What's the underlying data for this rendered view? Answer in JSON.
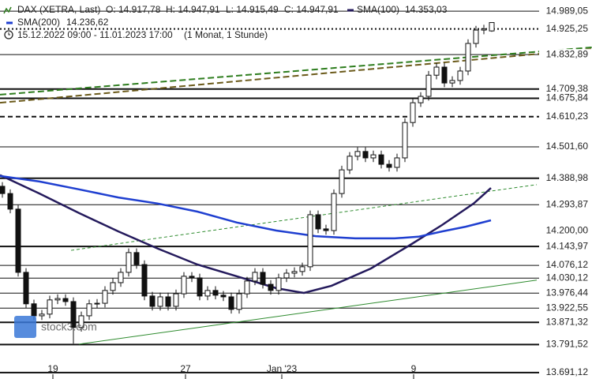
{
  "chart_data": {
    "type": "candlestick",
    "title": "DAX (XETRA, Last)",
    "ohlc_legend": [
      "O: 14.917,78",
      "H: 14.947,91",
      "L: 14.915,49",
      "C: 14.947,91"
    ],
    "period": "15.12.2022 09:00 - 11.01.2023 17:00",
    "interval": "(1 Monat, 1 Stunde)",
    "watermark": "stock3.com",
    "ylim": [
      13668,
      15029
    ],
    "xlim": [
      -0.3,
      74.7
    ],
    "xticks": [
      {
        "value": 6.4,
        "label": "19"
      },
      {
        "value": 23.2,
        "label": "27"
      },
      {
        "value": 35.4,
        "label": "Jan '23"
      },
      {
        "value": 52.1,
        "label": "9"
      }
    ],
    "up_color": "#ffffff",
    "down_color": "#111111",
    "open": [
      14360,
      14334,
      14278,
      14051,
      13938,
      13895,
      13901,
      13952,
      13957,
      13946,
      13853,
      13895,
      13938,
      13940,
      13986,
      14014,
      14051,
      14122,
      14079,
      13966,
      13929,
      13963,
      13929,
      13974,
      14037,
      14031,
      13966,
      13986,
      13969,
      13963,
      13918,
      13974,
      14020,
      14051,
      14008,
      13986,
      14031,
      14048,
      14054,
      14071,
      14258,
      14207,
      14201,
      14334,
      14419,
      14468,
      14485,
      14462,
      14473,
      14439,
      14428,
      14462,
      14589,
      14660,
      14683,
      14759,
      14788,
      14731,
      14740,
      14774,
      14873,
      14921,
      14918
    ],
    "high": [
      14375,
      14349,
      14293,
      14066,
      13953,
      13916,
      13967,
      13972,
      13972,
      13961,
      13910,
      13953,
      13955,
      14001,
      14029,
      14066,
      14137,
      14137,
      14094,
      13981,
      13978,
      13978,
      13989,
      14052,
      14052,
      14046,
      14001,
      14001,
      13984,
      13978,
      13989,
      14035,
      14066,
      14066,
      14023,
      14046,
      14063,
      14069,
      14086,
      14273,
      14273,
      14222,
      14349,
      14434,
      14483,
      14500,
      14500,
      14488,
      14488,
      14454,
      14477,
      14604,
      14675,
      14698,
      14774,
      14803,
      14803,
      14755,
      14789,
      14888,
      14936,
      14940,
      14948
    ],
    "low": [
      14319,
      14263,
      14036,
      13923,
      13880,
      13880,
      13886,
      13937,
      13931,
      13795,
      13838,
      13880,
      13923,
      13925,
      13971,
      13999,
      14036,
      14064,
      13951,
      13914,
      13914,
      13914,
      13914,
      13959,
      14016,
      13951,
      13951,
      13954,
      13948,
      13903,
      13903,
      13959,
      14005,
      13993,
      13971,
      13971,
      14016,
      14033,
      14039,
      14056,
      14192,
      14186,
      14186,
      14319,
      14404,
      14453,
      14447,
      14447,
      14424,
      14413,
      14413,
      14447,
      14574,
      14645,
      14668,
      14744,
      14716,
      14716,
      14725,
      14759,
      14858,
      14906,
      14915
    ],
    "close": [
      14334,
      14278,
      14051,
      13938,
      13895,
      13901,
      13952,
      13957,
      13946,
      13853,
      13895,
      13938,
      13940,
      13986,
      14014,
      14051,
      14122,
      14079,
      13966,
      13929,
      13963,
      13929,
      13974,
      14037,
      14031,
      13966,
      13986,
      13969,
      13963,
      13918,
      13974,
      14020,
      14051,
      14008,
      13986,
      14031,
      14048,
      14054,
      14071,
      14258,
      14207,
      14201,
      14334,
      14419,
      14468,
      14485,
      14462,
      14473,
      14439,
      14428,
      14462,
      14589,
      14660,
      14683,
      14759,
      14788,
      14731,
      14740,
      14774,
      14873,
      14921,
      14925,
      14948
    ],
    "series": [
      {
        "name": "SMA(100)",
        "legend_value": "14.353,03",
        "color": "#241a5c",
        "x": [
          -0.3,
          4.7,
          9.7,
          14.7,
          19.7,
          24.7,
          29.7,
          34.7,
          38.2,
          41.7,
          46.7,
          51.7,
          55.7,
          59.7,
          61.9
        ],
        "values": [
          14400,
          14334,
          14264,
          14198,
          14136,
          14079,
          14037,
          13994,
          13977,
          14003,
          14065,
          14150,
          14221,
          14298,
          14354
        ]
      },
      {
        "name": "SMA(200)",
        "legend_value": "14.236,62",
        "color": "#1f3fd0",
        "x": [
          -0.3,
          4.7,
          9.7,
          14.7,
          19.7,
          24.7,
          29.7,
          34.7,
          39.7,
          44.7,
          49.7,
          52.7,
          55.7,
          58.7,
          61.9
        ],
        "values": [
          14397,
          14377,
          14349,
          14320,
          14298,
          14269,
          14230,
          14201,
          14181,
          14173,
          14173,
          14179,
          14198,
          14215,
          14238
        ]
      }
    ],
    "trendlines": [
      {
        "color": "#2e7d1e",
        "style": "dashed",
        "x": [
          -0.3,
          74.7
        ],
        "values": [
          14689,
          14859
        ]
      },
      {
        "color": "#6b5a1a",
        "style": "dashed",
        "x": [
          -0.3,
          74.7
        ],
        "values": [
          14660,
          14853
        ]
      },
      {
        "color": "#2e8b2e",
        "style": "thin",
        "x": [
          9.7,
          67.7
        ],
        "values": [
          13793,
          14023
        ]
      },
      {
        "color": "#2e8b2e",
        "style": "thin-dashed",
        "x": [
          8.7,
          67.7
        ],
        "values": [
          14130,
          14366
        ]
      }
    ],
    "levels": [
      {
        "value": 14989.05,
        "label": "14.989,05",
        "style": "solid"
      },
      {
        "value": 14925.25,
        "label": "14.925,25",
        "style": "dotted"
      },
      {
        "value": 14832.89,
        "label": "14.832,89",
        "style": "solid"
      },
      {
        "value": 14709.38,
        "label": "14.709,38",
        "style": "thick"
      },
      {
        "value": 14675.84,
        "label": "14.675,84",
        "style": "thick"
      },
      {
        "value": 14610.23,
        "label": "14.610,23",
        "style": "dashed"
      },
      {
        "value": 14501.6,
        "label": "14.501,60",
        "style": "solid"
      },
      {
        "value": 14388.98,
        "label": "14.388,98",
        "style": "thick"
      },
      {
        "value": 14293.87,
        "label": "14.293,87",
        "style": "solid"
      },
      {
        "value": 14200,
        "label": "14.200,00",
        "style": "none"
      },
      {
        "value": 14143.97,
        "label": "14.143,97",
        "style": "thick"
      },
      {
        "value": 14076.12,
        "label": "14.076,12",
        "style": "solid"
      },
      {
        "value": 14030.12,
        "label": "14.030,12",
        "style": "solid"
      },
      {
        "value": 13976.44,
        "label": "13.976,44",
        "style": "solid"
      },
      {
        "value": 13922.55,
        "label": "13.922,55",
        "style": "solid"
      },
      {
        "value": 13871.32,
        "label": "13.871,32",
        "style": "thick"
      },
      {
        "value": 13791.52,
        "label": "13.791,52",
        "style": "thick"
      },
      {
        "value": 13691.12,
        "label": "13.691,12",
        "style": "thick"
      }
    ]
  }
}
